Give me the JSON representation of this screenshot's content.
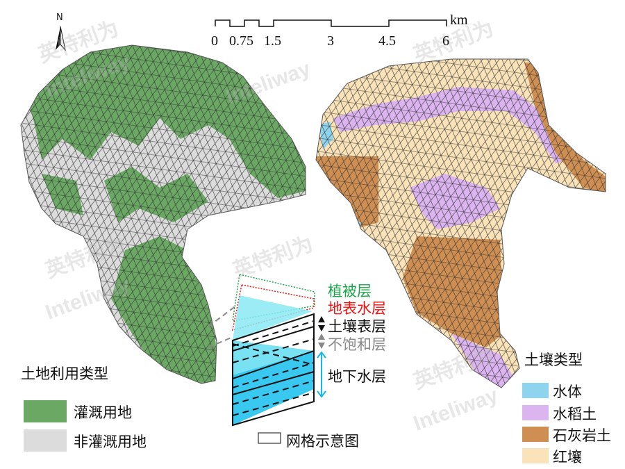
{
  "north_arrow": {
    "label": "N"
  },
  "scale_bar": {
    "unit": "km",
    "ticks": [
      "0",
      "0.75",
      "1.5",
      "3",
      "4.5",
      "6"
    ]
  },
  "colors": {
    "irrigated": "#6aa864",
    "non_irrigated": "#dcdcdc",
    "water": "#8fd4ef",
    "paddy_soil": "#dcb4f0",
    "limestone_soil": "#d08f52",
    "red_soil": "#fae3b8",
    "vegetation_layer": "#1aa34a",
    "surface_water_layer": "#ee1111",
    "soil_surface_layer": "#111111",
    "unsaturated_layer": "#888888",
    "groundwater_layer": "#12b8e8"
  },
  "land_use_legend": {
    "title": "土地利用类型",
    "items": [
      {
        "label": "灌溉用地",
        "color": "#6aa864"
      },
      {
        "label": "非灌溉用地",
        "color": "#dcdcdc"
      }
    ]
  },
  "soil_legend": {
    "title": "土壤类型",
    "items": [
      {
        "label": "水体",
        "color": "#8fd4ef"
      },
      {
        "label": "水稻土",
        "color": "#dcb4f0"
      },
      {
        "label": "石灰岩土",
        "color": "#d08f52"
      },
      {
        "label": "红壤",
        "color": "#fae3b8"
      }
    ]
  },
  "grid_diagram": {
    "layers": [
      "植被层",
      "地表水层",
      "土壤表层",
      "不饱和层",
      "地下水层"
    ],
    "legend_label": "网格示意图"
  },
  "watermark": {
    "cn": "英特利为",
    "en": "Inteliway"
  }
}
